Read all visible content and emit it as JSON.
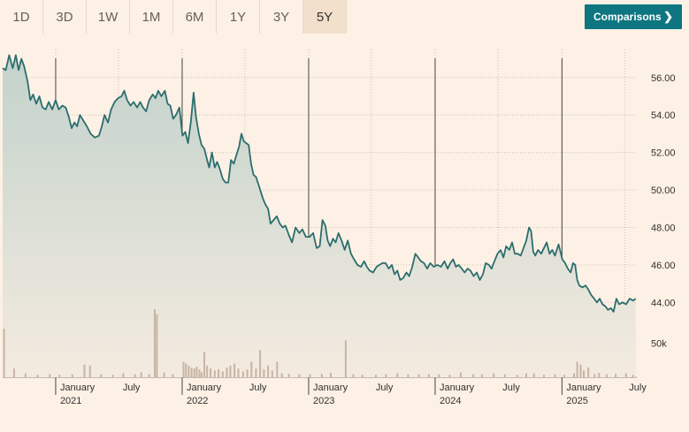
{
  "range_buttons": [
    {
      "label": "1D",
      "active": false
    },
    {
      "label": "3D",
      "active": false
    },
    {
      "label": "1W",
      "active": false
    },
    {
      "label": "1M",
      "active": false
    },
    {
      "label": "6M",
      "active": false
    },
    {
      "label": "1Y",
      "active": false
    },
    {
      "label": "3Y",
      "active": false
    },
    {
      "label": "5Y",
      "active": true
    }
  ],
  "comparisons": {
    "label": "Comparisons",
    "icon": "chevron-right-icon",
    "color": "#0d7680"
  },
  "colors": {
    "line": "#2b6e6e",
    "area_top": "#c2d2cb",
    "area_bottom": "#f4ebe0",
    "volume": "#c8b4a4",
    "grid": "#cbbfb3",
    "background": "#fdf1e5"
  },
  "chart_data": {
    "type": "area",
    "y_ticks": [
      "56.00",
      "54.00",
      "52.00",
      "50.00",
      "48.00",
      "46.00",
      "44.00"
    ],
    "ylim": [
      42.6,
      57.5
    ],
    "volume_label": "50k",
    "volume_max": 70000,
    "x_ticks": [
      {
        "date": "2021-01-01",
        "label": "January",
        "year": "2021"
      },
      {
        "date": "2021-07-01",
        "label": "July",
        "year": ""
      },
      {
        "date": "2022-01-01",
        "label": "January",
        "year": "2022"
      },
      {
        "date": "2022-07-01",
        "label": "July",
        "year": ""
      },
      {
        "date": "2023-01-01",
        "label": "January",
        "year": "2023"
      },
      {
        "date": "2023-07-01",
        "label": "July",
        "year": ""
      },
      {
        "date": "2024-01-01",
        "label": "January",
        "year": "2024"
      },
      {
        "date": "2024-07-01",
        "label": "July",
        "year": ""
      },
      {
        "date": "2025-01-01",
        "label": "January",
        "year": "2025"
      },
      {
        "date": "2025-07-01",
        "label": "July",
        "year": ""
      }
    ],
    "xlim": [
      "2020-08-01",
      "2025-08-05"
    ],
    "year_dividers": [
      "2021-01-01",
      "2022-01-01",
      "2023-01-01",
      "2024-01-01",
      "2025-01-01"
    ],
    "price_series": [
      [
        "2020-08-01",
        56.5
      ],
      [
        "2020-08-10",
        56.4
      ],
      [
        "2020-08-20",
        57.2
      ],
      [
        "2020-08-30",
        56.5
      ],
      [
        "2020-09-08",
        57.2
      ],
      [
        "2020-09-16",
        56.4
      ],
      [
        "2020-09-24",
        57.0
      ],
      [
        "2020-10-02",
        56.6
      ],
      [
        "2020-10-12",
        55.8
      ],
      [
        "2020-10-20",
        54.8
      ],
      [
        "2020-10-28",
        55.1
      ],
      [
        "2020-11-06",
        54.6
      ],
      [
        "2020-11-15",
        55.0
      ],
      [
        "2020-11-24",
        54.4
      ],
      [
        "2020-12-03",
        54.3
      ],
      [
        "2020-12-12",
        54.7
      ],
      [
        "2020-12-22",
        54.3
      ],
      [
        "2021-01-01",
        54.8
      ],
      [
        "2021-01-10",
        54.3
      ],
      [
        "2021-01-20",
        54.5
      ],
      [
        "2021-01-30",
        54.4
      ],
      [
        "2021-02-08",
        53.9
      ],
      [
        "2021-02-16",
        53.3
      ],
      [
        "2021-02-24",
        53.6
      ],
      [
        "2021-03-04",
        53.4
      ],
      [
        "2021-03-12",
        54.0
      ],
      [
        "2021-03-22",
        53.7
      ],
      [
        "2021-04-01",
        53.4
      ],
      [
        "2021-04-12",
        53.0
      ],
      [
        "2021-04-24",
        52.8
      ],
      [
        "2021-05-06",
        52.9
      ],
      [
        "2021-05-14",
        53.4
      ],
      [
        "2021-05-22",
        54.0
      ],
      [
        "2021-06-01",
        53.6
      ],
      [
        "2021-06-10",
        54.3
      ],
      [
        "2021-06-20",
        54.7
      ],
      [
        "2021-06-30",
        54.9
      ],
      [
        "2021-07-10",
        55.0
      ],
      [
        "2021-07-18",
        55.3
      ],
      [
        "2021-07-26",
        54.8
      ],
      [
        "2021-08-05",
        54.5
      ],
      [
        "2021-08-14",
        54.7
      ],
      [
        "2021-08-24",
        54.4
      ],
      [
        "2021-09-02",
        54.7
      ],
      [
        "2021-09-10",
        54.4
      ],
      [
        "2021-09-19",
        54.2
      ],
      [
        "2021-09-28",
        54.8
      ],
      [
        "2021-10-08",
        55.1
      ],
      [
        "2021-10-16",
        54.9
      ],
      [
        "2021-10-24",
        55.3
      ],
      [
        "2021-11-02",
        55.0
      ],
      [
        "2021-11-12",
        55.3
      ],
      [
        "2021-11-20",
        54.6
      ],
      [
        "2021-11-28",
        54.5
      ],
      [
        "2021-12-06",
        53.8
      ],
      [
        "2021-12-14",
        54.0
      ],
      [
        "2021-12-24",
        54.4
      ],
      [
        "2022-01-02",
        52.9
      ],
      [
        "2022-01-10",
        53.1
      ],
      [
        "2022-01-18",
        52.5
      ],
      [
        "2022-01-26",
        53.6
      ],
      [
        "2022-02-03",
        55.2
      ],
      [
        "2022-02-10",
        53.9
      ],
      [
        "2022-02-18",
        53.0
      ],
      [
        "2022-02-26",
        52.4
      ],
      [
        "2022-03-06",
        52.2
      ],
      [
        "2022-03-14",
        51.6
      ],
      [
        "2022-03-20",
        51.2
      ],
      [
        "2022-03-28",
        52.0
      ],
      [
        "2022-04-05",
        51.2
      ],
      [
        "2022-04-12",
        51.5
      ],
      [
        "2022-04-20",
        51.1
      ],
      [
        "2022-04-28",
        50.6
      ],
      [
        "2022-05-06",
        50.4
      ],
      [
        "2022-05-14",
        50.4
      ],
      [
        "2022-05-22",
        51.6
      ],
      [
        "2022-05-30",
        51.4
      ],
      [
        "2022-06-07",
        51.9
      ],
      [
        "2022-06-14",
        52.3
      ],
      [
        "2022-06-21",
        53.0
      ],
      [
        "2022-06-28",
        52.6
      ],
      [
        "2022-07-05",
        52.5
      ],
      [
        "2022-07-12",
        52.4
      ],
      [
        "2022-07-19",
        51.4
      ],
      [
        "2022-07-26",
        50.8
      ],
      [
        "2022-08-02",
        50.7
      ],
      [
        "2022-08-09",
        50.3
      ],
      [
        "2022-08-16",
        49.9
      ],
      [
        "2022-08-23",
        49.5
      ],
      [
        "2022-08-30",
        49.2
      ],
      [
        "2022-09-06",
        49.0
      ],
      [
        "2022-09-13",
        48.2
      ],
      [
        "2022-09-22",
        48.4
      ],
      [
        "2022-10-01",
        48.6
      ],
      [
        "2022-10-10",
        48.2
      ],
      [
        "2022-10-18",
        48.0
      ],
      [
        "2022-10-26",
        48.1
      ],
      [
        "2022-11-05",
        47.6
      ],
      [
        "2022-11-14",
        47.2
      ],
      [
        "2022-11-24",
        48.0
      ],
      [
        "2022-12-05",
        47.7
      ],
      [
        "2022-12-14",
        47.9
      ],
      [
        "2022-12-24",
        47.5
      ],
      [
        "2023-01-04",
        47.5
      ],
      [
        "2023-01-14",
        47.7
      ],
      [
        "2023-01-24",
        46.9
      ],
      [
        "2023-02-02",
        47.0
      ],
      [
        "2023-02-10",
        48.4
      ],
      [
        "2023-02-18",
        48.1
      ],
      [
        "2023-02-25",
        47.3
      ],
      [
        "2023-03-04",
        47.0
      ],
      [
        "2023-03-12",
        47.4
      ],
      [
        "2023-03-20",
        47.2
      ],
      [
        "2023-03-28",
        47.7
      ],
      [
        "2023-04-06",
        47.3
      ],
      [
        "2023-04-15",
        46.8
      ],
      [
        "2023-04-24",
        47.3
      ],
      [
        "2023-05-03",
        46.6
      ],
      [
        "2023-05-12",
        46.3
      ],
      [
        "2023-05-22",
        46.0
      ],
      [
        "2023-06-01",
        45.9
      ],
      [
        "2023-06-10",
        46.2
      ],
      [
        "2023-06-18",
        45.9
      ],
      [
        "2023-06-26",
        45.7
      ],
      [
        "2023-07-06",
        45.6
      ],
      [
        "2023-07-16",
        45.9
      ],
      [
        "2023-07-24",
        46.0
      ],
      [
        "2023-08-02",
        46.1
      ],
      [
        "2023-08-11",
        46.1
      ],
      [
        "2023-08-20",
        45.8
      ],
      [
        "2023-08-29",
        46.0
      ],
      [
        "2023-09-06",
        45.5
      ],
      [
        "2023-09-14",
        45.7
      ],
      [
        "2023-09-22",
        45.2
      ],
      [
        "2023-10-01",
        45.3
      ],
      [
        "2023-10-10",
        45.6
      ],
      [
        "2023-10-18",
        45.4
      ],
      [
        "2023-10-27",
        45.9
      ],
      [
        "2023-11-05",
        46.6
      ],
      [
        "2023-11-13",
        46.4
      ],
      [
        "2023-11-21",
        46.2
      ],
      [
        "2023-11-30",
        46.1
      ],
      [
        "2023-12-09",
        45.8
      ],
      [
        "2023-12-18",
        46.1
      ],
      [
        "2023-12-28",
        45.9
      ],
      [
        "2024-01-08",
        46.0
      ],
      [
        "2024-01-18",
        45.9
      ],
      [
        "2024-01-28",
        46.2
      ],
      [
        "2024-02-06",
        45.8
      ],
      [
        "2024-02-14",
        46.1
      ],
      [
        "2024-02-22",
        46.3
      ],
      [
        "2024-03-01",
        45.9
      ],
      [
        "2024-03-09",
        46.0
      ],
      [
        "2024-03-18",
        45.8
      ],
      [
        "2024-03-26",
        45.6
      ],
      [
        "2024-04-04",
        45.8
      ],
      [
        "2024-04-12",
        45.7
      ],
      [
        "2024-04-21",
        45.4
      ],
      [
        "2024-04-30",
        45.6
      ],
      [
        "2024-05-09",
        45.2
      ],
      [
        "2024-05-18",
        45.5
      ],
      [
        "2024-05-26",
        46.1
      ],
      [
        "2024-06-04",
        46.0
      ],
      [
        "2024-06-12",
        45.8
      ],
      [
        "2024-06-20",
        46.2
      ],
      [
        "2024-06-29",
        46.6
      ],
      [
        "2024-07-08",
        46.8
      ],
      [
        "2024-07-16",
        46.4
      ],
      [
        "2024-07-24",
        47.0
      ],
      [
        "2024-08-02",
        46.8
      ],
      [
        "2024-08-10",
        47.2
      ],
      [
        "2024-08-18",
        46.6
      ],
      [
        "2024-08-26",
        46.6
      ],
      [
        "2024-09-04",
        46.5
      ],
      [
        "2024-09-12",
        46.9
      ],
      [
        "2024-09-20",
        47.3
      ],
      [
        "2024-09-28",
        48.0
      ],
      [
        "2024-10-04",
        47.8
      ],
      [
        "2024-10-10",
        46.7
      ],
      [
        "2024-10-16",
        46.5
      ],
      [
        "2024-10-24",
        46.8
      ],
      [
        "2024-11-02",
        46.6
      ],
      [
        "2024-11-10",
        46.9
      ],
      [
        "2024-11-18",
        47.2
      ],
      [
        "2024-11-26",
        46.6
      ],
      [
        "2024-12-04",
        46.8
      ],
      [
        "2024-12-12",
        46.5
      ],
      [
        "2024-12-22",
        47.1
      ],
      [
        "2025-01-02",
        46.3
      ],
      [
        "2025-01-10",
        46.1
      ],
      [
        "2025-01-18",
        45.8
      ],
      [
        "2025-01-26",
        45.6
      ],
      [
        "2025-02-02",
        46.1
      ],
      [
        "2025-02-08",
        46.0
      ],
      [
        "2025-02-14",
        45.2
      ],
      [
        "2025-02-20",
        44.9
      ],
      [
        "2025-03-01",
        44.8
      ],
      [
        "2025-03-10",
        44.9
      ],
      [
        "2025-03-18",
        44.7
      ],
      [
        "2025-03-26",
        44.4
      ],
      [
        "2025-04-04",
        44.2
      ],
      [
        "2025-04-12",
        44.0
      ],
      [
        "2025-04-20",
        44.2
      ],
      [
        "2025-04-28",
        43.9
      ],
      [
        "2025-05-06",
        43.8
      ],
      [
        "2025-05-14",
        43.6
      ],
      [
        "2025-05-22",
        43.7
      ],
      [
        "2025-05-30",
        43.5
      ],
      [
        "2025-06-07",
        44.2
      ],
      [
        "2025-06-15",
        43.9
      ],
      [
        "2025-06-25",
        44.0
      ],
      [
        "2025-07-05",
        43.9
      ],
      [
        "2025-07-15",
        44.2
      ],
      [
        "2025-07-25",
        44.1
      ],
      [
        "2025-08-02",
        44.2
      ]
    ],
    "volume_series": [
      [
        "2020-08-05",
        50000
      ],
      [
        "2020-09-03",
        9000
      ],
      [
        "2020-10-06",
        4000
      ],
      [
        "2020-11-10",
        2500
      ],
      [
        "2020-12-15",
        3000
      ],
      [
        "2021-01-12",
        2500
      ],
      [
        "2021-02-18",
        3000
      ],
      [
        "2021-03-25",
        13000
      ],
      [
        "2021-04-10",
        12000
      ],
      [
        "2021-05-12",
        3000
      ],
      [
        "2021-06-15",
        2500
      ],
      [
        "2021-07-15",
        4000
      ],
      [
        "2021-08-18",
        3000
      ],
      [
        "2021-09-05",
        5000
      ],
      [
        "2021-09-28",
        3000
      ],
      [
        "2021-10-14",
        70000
      ],
      [
        "2021-10-20",
        65000
      ],
      [
        "2021-11-10",
        5000
      ],
      [
        "2021-12-05",
        3000
      ],
      [
        "2022-01-05",
        16000
      ],
      [
        "2022-01-12",
        14000
      ],
      [
        "2022-01-20",
        12000
      ],
      [
        "2022-01-28",
        10000
      ],
      [
        "2022-02-05",
        9000
      ],
      [
        "2022-02-12",
        11000
      ],
      [
        "2022-02-20",
        8000
      ],
      [
        "2022-02-26",
        5000
      ],
      [
        "2022-03-06",
        26000
      ],
      [
        "2022-03-14",
        12000
      ],
      [
        "2022-03-24",
        9000
      ],
      [
        "2022-04-05",
        7000
      ],
      [
        "2022-04-16",
        8000
      ],
      [
        "2022-04-28",
        6000
      ],
      [
        "2022-05-10",
        10000
      ],
      [
        "2022-05-20",
        12000
      ],
      [
        "2022-06-01",
        14000
      ],
      [
        "2022-06-12",
        9000
      ],
      [
        "2022-06-26",
        6000
      ],
      [
        "2022-07-08",
        8000
      ],
      [
        "2022-07-20",
        16000
      ],
      [
        "2022-08-02",
        9000
      ],
      [
        "2022-08-14",
        28000
      ],
      [
        "2022-08-25",
        8000
      ],
      [
        "2022-09-06",
        12000
      ],
      [
        "2022-09-18",
        7000
      ],
      [
        "2022-10-02",
        16000
      ],
      [
        "2022-10-16",
        4000
      ],
      [
        "2022-11-05",
        3500
      ],
      [
        "2022-12-05",
        3000
      ],
      [
        "2023-01-05",
        3000
      ],
      [
        "2023-02-08",
        3500
      ],
      [
        "2023-03-06",
        4500
      ],
      [
        "2023-04-18",
        38000
      ],
      [
        "2023-05-10",
        3000
      ],
      [
        "2023-06-05",
        2500
      ],
      [
        "2023-07-14",
        2500
      ],
      [
        "2023-08-12",
        3000
      ],
      [
        "2023-09-14",
        4000
      ],
      [
        "2023-10-15",
        3000
      ],
      [
        "2023-11-15",
        3000
      ],
      [
        "2023-12-14",
        3000
      ],
      [
        "2024-01-12",
        3000
      ],
      [
        "2024-02-12",
        2500
      ],
      [
        "2024-03-15",
        5000
      ],
      [
        "2024-04-20",
        3000
      ],
      [
        "2024-05-15",
        3000
      ],
      [
        "2024-06-18",
        4000
      ],
      [
        "2024-07-20",
        3000
      ],
      [
        "2024-08-25",
        2500
      ],
      [
        "2024-09-20",
        4000
      ],
      [
        "2024-10-12",
        4000
      ],
      [
        "2024-11-10",
        2500
      ],
      [
        "2024-12-12",
        3000
      ],
      [
        "2025-01-08",
        2500
      ],
      [
        "2025-02-05",
        4000
      ],
      [
        "2025-02-14",
        16000
      ],
      [
        "2025-02-24",
        13000
      ],
      [
        "2025-03-05",
        7000
      ],
      [
        "2025-03-18",
        10000
      ],
      [
        "2025-04-05",
        3500
      ],
      [
        "2025-04-18",
        4500
      ],
      [
        "2025-05-10",
        3000
      ],
      [
        "2025-06-05",
        3500
      ],
      [
        "2025-07-05",
        4000
      ],
      [
        "2025-07-25",
        2500
      ]
    ]
  }
}
